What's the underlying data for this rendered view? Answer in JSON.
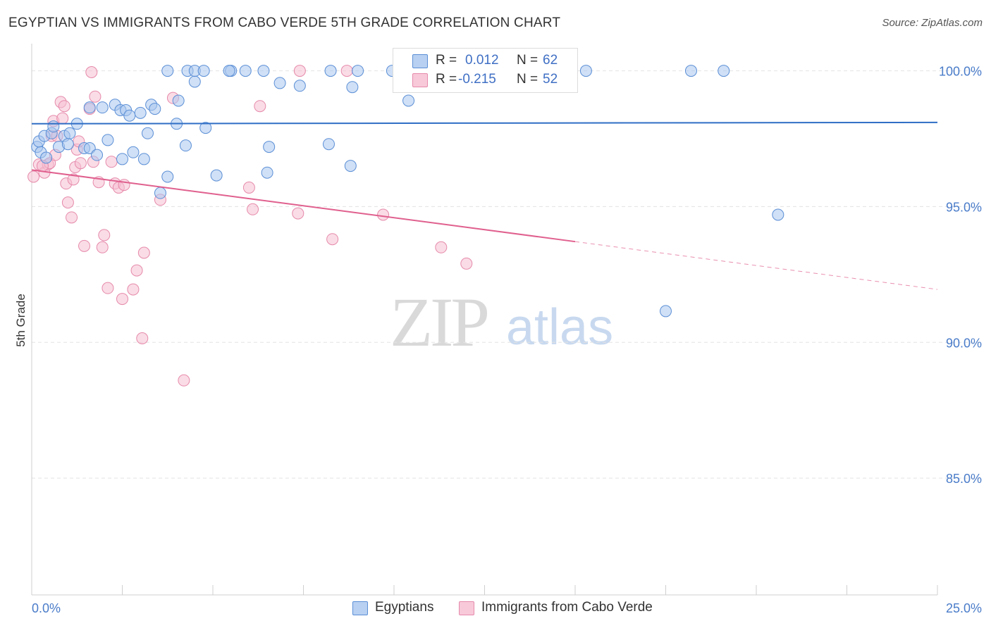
{
  "title": "EGYPTIAN VS IMMIGRANTS FROM CABO VERDE 5TH GRADE CORRELATION CHART",
  "source": "Source: ZipAtlas.com",
  "watermark": {
    "zip": "ZIP",
    "atlas": "atlas"
  },
  "legend": {
    "rows": [
      {
        "r_label": "R =",
        "r_value": "0.012",
        "n_label": "N =",
        "n_value": "62"
      },
      {
        "r_label": "R =",
        "r_value": "-0.215",
        "n_label": "N =",
        "n_value": "52"
      }
    ]
  },
  "bottom_legend": {
    "series1": "Egyptians",
    "series2": "Immigrants from Cabo Verde"
  },
  "colors": {
    "blue_fill": "#a9c6ee",
    "blue_stroke": "#5b8fd6",
    "blue_line": "#2f6ec5",
    "pink_fill": "#f6bfd2",
    "pink_stroke": "#e68aab",
    "pink_line": "#e0608e",
    "grid": "#e3e3e3",
    "tick_label": "#4a7cc9"
  },
  "chart_data": {
    "type": "scatter",
    "title": "EGYPTIAN VS IMMIGRANTS FROM CABO VERDE 5TH GRADE CORRELATION CHART",
    "xlabel": "",
    "ylabel": "5th Grade",
    "xlim": [
      0,
      25
    ],
    "ylim": [
      80.7,
      101
    ],
    "x_tick_labels": [
      {
        "value": 0,
        "label": "0.0%"
      },
      {
        "value": 25,
        "label": "25.0%"
      }
    ],
    "y_tick_labels": [
      {
        "value": 100,
        "label": "100.0%"
      },
      {
        "value": 95,
        "label": "95.0%"
      },
      {
        "value": 90,
        "label": "90.0%"
      },
      {
        "value": 85,
        "label": "85.0%"
      }
    ],
    "series": [
      {
        "name": "Egyptians",
        "color": "blue",
        "r": 0.012,
        "n": 62,
        "trend": {
          "x": [
            0,
            25
          ],
          "y": [
            98.05,
            98.1
          ],
          "solid_to": 25
        },
        "points": [
          [
            0.15,
            97.2
          ],
          [
            0.25,
            97.0
          ],
          [
            0.2,
            97.4
          ],
          [
            0.4,
            96.8
          ],
          [
            0.35,
            97.6
          ],
          [
            0.55,
            97.7
          ],
          [
            0.6,
            97.95
          ],
          [
            0.75,
            97.2
          ],
          [
            0.9,
            97.6
          ],
          [
            1.05,
            97.7
          ],
          [
            1.0,
            97.3
          ],
          [
            1.45,
            97.15
          ],
          [
            1.25,
            98.05
          ],
          [
            1.6,
            97.15
          ],
          [
            1.8,
            96.9
          ],
          [
            2.1,
            97.45
          ],
          [
            2.5,
            96.75
          ],
          [
            2.8,
            97.0
          ],
          [
            3.1,
            96.75
          ],
          [
            1.6,
            98.65
          ],
          [
            1.95,
            98.65
          ],
          [
            2.3,
            98.75
          ],
          [
            2.45,
            98.55
          ],
          [
            2.6,
            98.55
          ],
          [
            2.7,
            98.35
          ],
          [
            3.0,
            98.45
          ],
          [
            3.3,
            98.75
          ],
          [
            3.4,
            98.6
          ],
          [
            3.2,
            97.7
          ],
          [
            3.75,
            96.1
          ],
          [
            3.55,
            95.5
          ],
          [
            4.0,
            98.05
          ],
          [
            4.05,
            98.9
          ],
          [
            4.25,
            97.25
          ],
          [
            4.5,
            99.6
          ],
          [
            4.8,
            97.9
          ],
          [
            5.1,
            96.15
          ],
          [
            3.75,
            100.0
          ],
          [
            4.3,
            100.0
          ],
          [
            4.5,
            100.0
          ],
          [
            4.75,
            100.0
          ],
          [
            5.5,
            100.0
          ],
          [
            5.9,
            100.0
          ],
          [
            6.4,
            100.0
          ],
          [
            6.5,
            96.25
          ],
          [
            6.55,
            97.2
          ],
          [
            6.85,
            99.55
          ],
          [
            7.4,
            99.45
          ],
          [
            8.2,
            97.3
          ],
          [
            8.25,
            100.0
          ],
          [
            8.8,
            96.5
          ],
          [
            8.85,
            99.4
          ],
          [
            9.0,
            100.0
          ],
          [
            9.95,
            100.0
          ],
          [
            10.4,
            98.9
          ],
          [
            13.3,
            100.0
          ],
          [
            15.3,
            100.0
          ],
          [
            18.2,
            100.0
          ],
          [
            19.1,
            100.0
          ],
          [
            20.6,
            94.7
          ],
          [
            17.5,
            91.15
          ],
          [
            5.45,
            100.0
          ]
        ]
      },
      {
        "name": "Immigrants from Cabo Verde",
        "color": "pink",
        "r": -0.215,
        "n": 52,
        "trend": {
          "x": [
            0,
            25
          ],
          "y": [
            96.35,
            91.95
          ],
          "solid_to": 15.0
        },
        "points": [
          [
            0.05,
            96.1
          ],
          [
            0.2,
            96.55
          ],
          [
            0.35,
            96.25
          ],
          [
            0.45,
            96.55
          ],
          [
            0.5,
            96.6
          ],
          [
            0.65,
            96.9
          ],
          [
            0.55,
            97.6
          ],
          [
            0.6,
            98.15
          ],
          [
            0.7,
            97.6
          ],
          [
            0.85,
            98.25
          ],
          [
            0.8,
            98.85
          ],
          [
            0.9,
            98.7
          ],
          [
            0.95,
            95.85
          ],
          [
            1.0,
            95.15
          ],
          [
            1.1,
            94.6
          ],
          [
            1.15,
            96.0
          ],
          [
            1.2,
            96.45
          ],
          [
            1.25,
            97.1
          ],
          [
            1.3,
            97.4
          ],
          [
            1.35,
            96.6
          ],
          [
            1.45,
            93.55
          ],
          [
            1.6,
            98.6
          ],
          [
            1.65,
            99.95
          ],
          [
            1.75,
            99.05
          ],
          [
            1.85,
            95.9
          ],
          [
            1.95,
            93.5
          ],
          [
            2.0,
            93.95
          ],
          [
            2.1,
            92.0
          ],
          [
            2.2,
            96.65
          ],
          [
            2.3,
            95.85
          ],
          [
            2.4,
            95.7
          ],
          [
            2.5,
            91.6
          ],
          [
            2.8,
            91.95
          ],
          [
            2.9,
            92.65
          ],
          [
            3.1,
            93.3
          ],
          [
            3.05,
            90.15
          ],
          [
            3.55,
            95.25
          ],
          [
            3.9,
            99.0
          ],
          [
            4.2,
            88.6
          ],
          [
            6.0,
            95.7
          ],
          [
            6.1,
            94.9
          ],
          [
            6.3,
            98.7
          ],
          [
            7.35,
            94.75
          ],
          [
            7.4,
            100.0
          ],
          [
            8.3,
            93.8
          ],
          [
            8.7,
            100.0
          ],
          [
            9.7,
            94.7
          ],
          [
            11.3,
            93.5
          ],
          [
            12.0,
            92.9
          ],
          [
            1.7,
            96.65
          ],
          [
            0.3,
            96.5
          ],
          [
            2.55,
            95.8
          ]
        ]
      }
    ]
  }
}
